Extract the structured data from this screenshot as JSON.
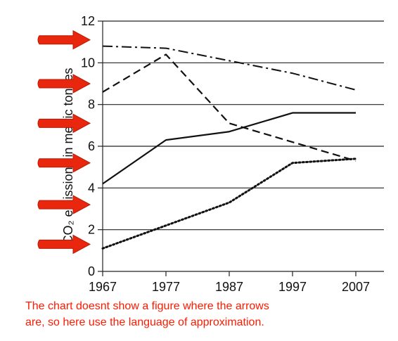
{
  "chart_data": {
    "type": "line",
    "x": [
      1967,
      1977,
      1987,
      1997,
      2007
    ],
    "ylabel": "CO₂ emissions in metric tonnes",
    "ylim": [
      0,
      12
    ],
    "yticks": [
      0,
      2,
      4,
      6,
      8,
      10,
      12
    ],
    "grid": true,
    "series": [
      {
        "style": "solid",
        "values": [
          4.2,
          6.3,
          6.7,
          7.6,
          7.6
        ]
      },
      {
        "style": "dashed",
        "values": [
          8.6,
          10.4,
          7.1,
          6.2,
          5.3
        ]
      },
      {
        "style": "dashdot",
        "values": [
          10.8,
          10.7,
          10.1,
          9.5,
          8.7
        ]
      },
      {
        "style": "dotted",
        "values": [
          1.1,
          2.2,
          3.3,
          5.2,
          5.4
        ]
      }
    ]
  },
  "annotation": {
    "line1": "The chart doesnt show a figure where the arrows",
    "line2": "are, so here use the language of approximation."
  },
  "colors": {
    "arrow": "#e8270e",
    "note": "#ff1a00"
  },
  "arrows": {
    "icon": "red-arrow-icon",
    "y_values": [
      11.1,
      9.0,
      7.1,
      5.2,
      3.2,
      1.3
    ]
  }
}
